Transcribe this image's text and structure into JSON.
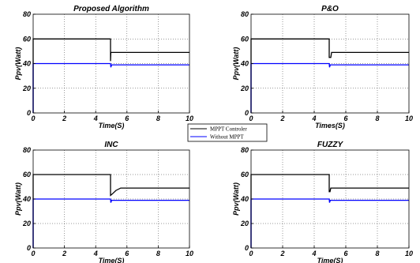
{
  "chart_data": [
    {
      "type": "line",
      "title": "Proposed Algorithm",
      "xlabel": "Time(S)",
      "ylabel": "Ppv(Watt)",
      "xlim": [
        0,
        10
      ],
      "ylim": [
        0,
        80
      ],
      "xticks": [
        "0",
        "2",
        "4",
        "6",
        "8",
        "10"
      ],
      "yticks": [
        "0",
        "20",
        "40",
        "60",
        "80"
      ],
      "grid": true,
      "series": [
        {
          "name": "MPPT Controler",
          "color": "#000000",
          "x": [
            0,
            0,
            4.95,
            4.95,
            4.97,
            10
          ],
          "y": [
            0,
            60,
            60,
            42,
            49,
            49
          ]
        },
        {
          "name": "Without MPPT",
          "color": "#0000ff",
          "x": [
            0,
            0,
            4.95,
            4.97,
            5.02,
            10
          ],
          "y": [
            0,
            40,
            40,
            37,
            39,
            39
          ]
        }
      ]
    },
    {
      "type": "line",
      "title": "P&O",
      "xlabel": "Times(S)",
      "ylabel": "Ppv(Watt)",
      "xlim": [
        0,
        10
      ],
      "ylim": [
        0,
        80
      ],
      "xticks": [
        "0",
        "2",
        "4",
        "6",
        "8",
        "10"
      ],
      "yticks": [
        "0",
        "20",
        "40",
        "60",
        "80"
      ],
      "grid": true,
      "series": [
        {
          "name": "MPPT Controler",
          "color": "#000000",
          "x": [
            0,
            0,
            4.95,
            4.95,
            5.05,
            5.1,
            10
          ],
          "y": [
            0,
            60,
            60,
            45,
            45,
            49,
            49
          ]
        },
        {
          "name": "Without MPPT",
          "color": "#0000ff",
          "x": [
            0,
            0,
            4.95,
            4.97,
            5.02,
            10
          ],
          "y": [
            0,
            40,
            40,
            37,
            39,
            39
          ]
        }
      ]
    },
    {
      "type": "line",
      "title": "INC",
      "xlabel": "Time(S)",
      "ylabel": "Ppv(Watt)",
      "xlim": [
        0,
        10
      ],
      "ylim": [
        0,
        80
      ],
      "xticks": [
        "0",
        "2",
        "4",
        "6",
        "8",
        "10"
      ],
      "yticks": [
        "0",
        "20",
        "40",
        "60",
        "80"
      ],
      "grid": true,
      "series": [
        {
          "name": "MPPT Controler",
          "color": "#000000",
          "x": [
            0,
            0,
            4.95,
            4.95,
            5.05,
            5.3,
            5.6,
            10
          ],
          "y": [
            0,
            60,
            60,
            43,
            44,
            47,
            49,
            49
          ]
        },
        {
          "name": "Without MPPT",
          "color": "#0000ff",
          "x": [
            0,
            0,
            4.95,
            4.97,
            5.02,
            10
          ],
          "y": [
            0,
            40,
            40,
            37,
            39,
            39
          ]
        }
      ]
    },
    {
      "type": "line",
      "title": "FUZZY",
      "xlabel": "Time(S)",
      "ylabel": "Ppv(Watt)",
      "xlim": [
        0,
        10
      ],
      "ylim": [
        0,
        80
      ],
      "xticks": [
        "0",
        "2",
        "4",
        "6",
        "8",
        "10"
      ],
      "yticks": [
        "0",
        "20",
        "40",
        "60",
        "80"
      ],
      "grid": true,
      "series": [
        {
          "name": "MPPT Controler",
          "color": "#000000",
          "x": [
            0,
            0,
            4.95,
            4.95,
            5.0,
            5.05,
            10
          ],
          "y": [
            0,
            60,
            60,
            46,
            46,
            49,
            49
          ]
        },
        {
          "name": "Without MPPT",
          "color": "#0000ff",
          "x": [
            0,
            0,
            4.95,
            4.97,
            5.02,
            10
          ],
          "y": [
            0,
            40,
            40,
            37,
            39,
            39
          ]
        }
      ]
    }
  ],
  "legend": {
    "placement": "center",
    "items": [
      {
        "label": "MPPT Controler",
        "color": "#000000"
      },
      {
        "label": "Without MPPT",
        "color": "#0000ff"
      }
    ]
  }
}
